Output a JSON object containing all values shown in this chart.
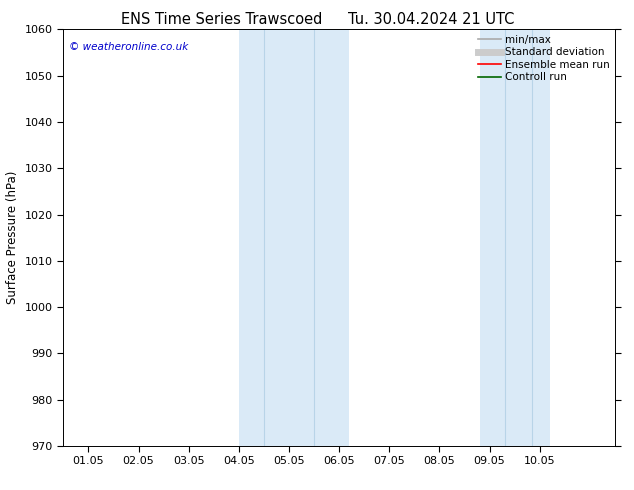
{
  "title_left": "ENS Time Series Trawscoed",
  "title_right": "Tu. 30.04.2024 21 UTC",
  "ylabel": "Surface Pressure (hPa)",
  "ylim": [
    970,
    1060
  ],
  "yticks": [
    970,
    980,
    990,
    1000,
    1010,
    1020,
    1030,
    1040,
    1050,
    1060
  ],
  "xlim": [
    -0.5,
    10.5
  ],
  "xtick_labels": [
    "01.05",
    "02.05",
    "03.05",
    "04.05",
    "05.05",
    "06.05",
    "07.05",
    "08.05",
    "09.05",
    "10.05"
  ],
  "xtick_positions": [
    0,
    1,
    2,
    3,
    4,
    5,
    6,
    7,
    8,
    9
  ],
  "shade_bands": [
    {
      "xmin": 3.0,
      "xmax": 5.2,
      "color": "#daeaf7"
    },
    {
      "xmin": 7.8,
      "xmax": 9.2,
      "color": "#daeaf7"
    }
  ],
  "vertical_lines": [
    3.5,
    4.5,
    8.3,
    8.85
  ],
  "vertical_line_color": "#b8d4e8",
  "background_color": "#ffffff",
  "watermark_text": "© weatheronline.co.uk",
  "watermark_color": "#0000cc",
  "legend_entries": [
    {
      "label": "min/max",
      "color": "#aaaaaa",
      "lw": 1.2
    },
    {
      "label": "Standard deviation",
      "color": "#cccccc",
      "lw": 5
    },
    {
      "label": "Ensemble mean run",
      "color": "#ff0000",
      "lw": 1.2
    },
    {
      "label": "Controll run",
      "color": "#006600",
      "lw": 1.2
    }
  ],
  "title_fontsize": 10.5,
  "axis_label_fontsize": 8.5,
  "tick_fontsize": 8,
  "legend_fontsize": 7.5
}
